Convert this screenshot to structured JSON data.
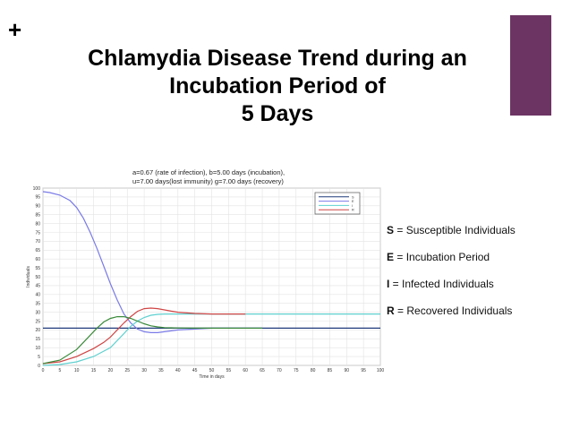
{
  "slide": {
    "plus_symbol": "+",
    "accent_color": "#6c3463",
    "title_lines": [
      "Chlamydia Disease Trend during an",
      "Incubation Period of",
      "5 Days"
    ]
  },
  "definitions": [
    {
      "key": "S",
      "text": " = Susceptible Individuals"
    },
    {
      "key": "E",
      "text": " = Incubation Period"
    },
    {
      "key": "I",
      "text": " = Infected Individuals"
    },
    {
      "key": "R",
      "text": " = Recovered Individuals"
    }
  ],
  "chart_data": {
    "type": "line",
    "title_lines": [
      "a=0.67 (rate of infection), b=5.00 days (incubation),",
      "u=7.00 days(lost immunity) g=7.00 days (recovery)"
    ],
    "xlabel": "Time in days",
    "ylabel": "Individuals",
    "xlim": [
      0,
      100
    ],
    "ylim": [
      0,
      100
    ],
    "x_ticks": [
      0,
      5,
      10,
      15,
      20,
      25,
      30,
      35,
      40,
      45,
      50,
      55,
      60,
      65,
      70,
      75,
      80,
      85,
      90,
      95,
      100
    ],
    "y_ticks": [
      0,
      5,
      10,
      15,
      20,
      25,
      30,
      35,
      40,
      45,
      50,
      55,
      60,
      65,
      70,
      75,
      80,
      85,
      90,
      95,
      100
    ],
    "grid": true,
    "legend_position": "top-right",
    "series": [
      {
        "name": "S",
        "color": "#1f3a7a",
        "x": [
          0,
          40,
          45,
          50,
          55,
          60,
          65,
          70,
          80,
          90,
          100
        ],
        "y": [
          21,
          21,
          21,
          21,
          21,
          21,
          21,
          21,
          21,
          21,
          21
        ]
      },
      {
        "name": "E",
        "color": "#7a7ae8",
        "x": [
          0,
          2,
          5,
          8,
          10,
          12,
          14,
          16,
          18,
          20,
          22,
          24,
          26,
          28,
          30,
          32,
          34,
          36,
          38,
          40,
          45,
          50,
          55,
          60,
          65
        ],
        "y": [
          98,
          97.5,
          96,
          93,
          89,
          83,
          75,
          66,
          56,
          46,
          37,
          29,
          24,
          20.5,
          19,
          18.5,
          18.5,
          19,
          19.5,
          20,
          20.5,
          21,
          21,
          21,
          21
        ]
      },
      {
        "name": "I",
        "color": "#5fd0d0",
        "x": [
          0,
          5,
          10,
          15,
          20,
          22,
          24,
          26,
          28,
          30,
          32,
          34,
          36,
          40,
          45,
          50,
          60,
          70,
          80,
          90,
          100
        ],
        "y": [
          0,
          0.5,
          2,
          5,
          10,
          14,
          18,
          22,
          25,
          27,
          28.3,
          28.8,
          29,
          29,
          29,
          29,
          29,
          29,
          29,
          29,
          29
        ]
      },
      {
        "name": "R",
        "color": "#d04545",
        "x": [
          0,
          5,
          10,
          15,
          18,
          20,
          22,
          24,
          26,
          28,
          30,
          32,
          34,
          36,
          38,
          40,
          45,
          50,
          55,
          60
        ],
        "y": [
          1,
          2,
          5,
          9.5,
          13,
          16,
          20,
          24,
          27.5,
          30.5,
          32,
          32.3,
          32,
          31.3,
          30.6,
          30,
          29.3,
          29,
          29,
          29
        ]
      },
      {
        "name": "",
        "color": "#3a8a3a",
        "x": [
          0,
          5,
          10,
          12,
          14,
          16,
          18,
          20,
          22,
          24,
          26,
          28,
          30,
          32,
          34,
          36,
          38,
          40,
          45,
          50,
          60,
          65
        ],
        "y": [
          1,
          3,
          9,
          13,
          17,
          21,
          24.5,
          26.5,
          27.5,
          27.5,
          26.5,
          25,
          23.5,
          22.3,
          21.7,
          21.3,
          21.2,
          21.1,
          21,
          21,
          21,
          21
        ]
      }
    ]
  }
}
